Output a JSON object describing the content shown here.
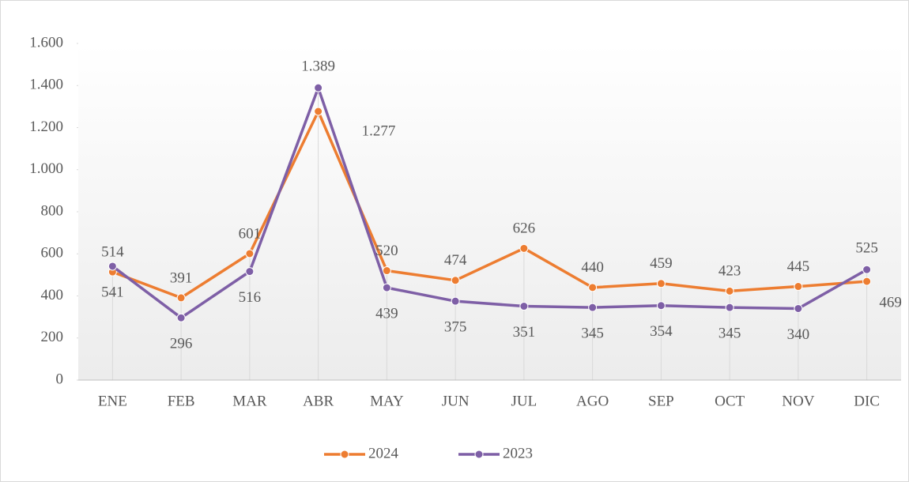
{
  "chart_data": {
    "type": "line",
    "categories": [
      "ENE",
      "FEB",
      "MAR",
      "ABR",
      "MAY",
      "JUN",
      "JUL",
      "AGO",
      "SEP",
      "OCT",
      "NOV",
      "DIC"
    ],
    "series": [
      {
        "name": "2024",
        "color": "#ed7d31",
        "values": [
          514,
          391,
          601,
          1277,
          520,
          474,
          626,
          440,
          459,
          423,
          445,
          469
        ],
        "value_labels": [
          "514",
          "391",
          "601",
          "1.277",
          "520",
          "474",
          "626",
          "440",
          "459",
          "423",
          "445",
          "469"
        ]
      },
      {
        "name": "2023",
        "color": "#7e5fa6",
        "values": [
          541,
          296,
          516,
          1389,
          439,
          375,
          351,
          345,
          354,
          345,
          340,
          525
        ],
        "value_labels": [
          "541",
          "296",
          "516",
          "1.389",
          "439",
          "375",
          "351",
          "345",
          "354",
          "345",
          "340",
          "525"
        ]
      }
    ],
    "ylim": [
      0,
      1600
    ],
    "yticks": [
      0,
      200,
      400,
      600,
      800,
      {
        "value": 1000,
        "label": "1.000"
      },
      {
        "value": 1200,
        "label": "1.200"
      },
      {
        "value": 1400,
        "label": "1.400"
      },
      {
        "value": 1600,
        "label": "1.600"
      }
    ],
    "legend": "bottom"
  }
}
